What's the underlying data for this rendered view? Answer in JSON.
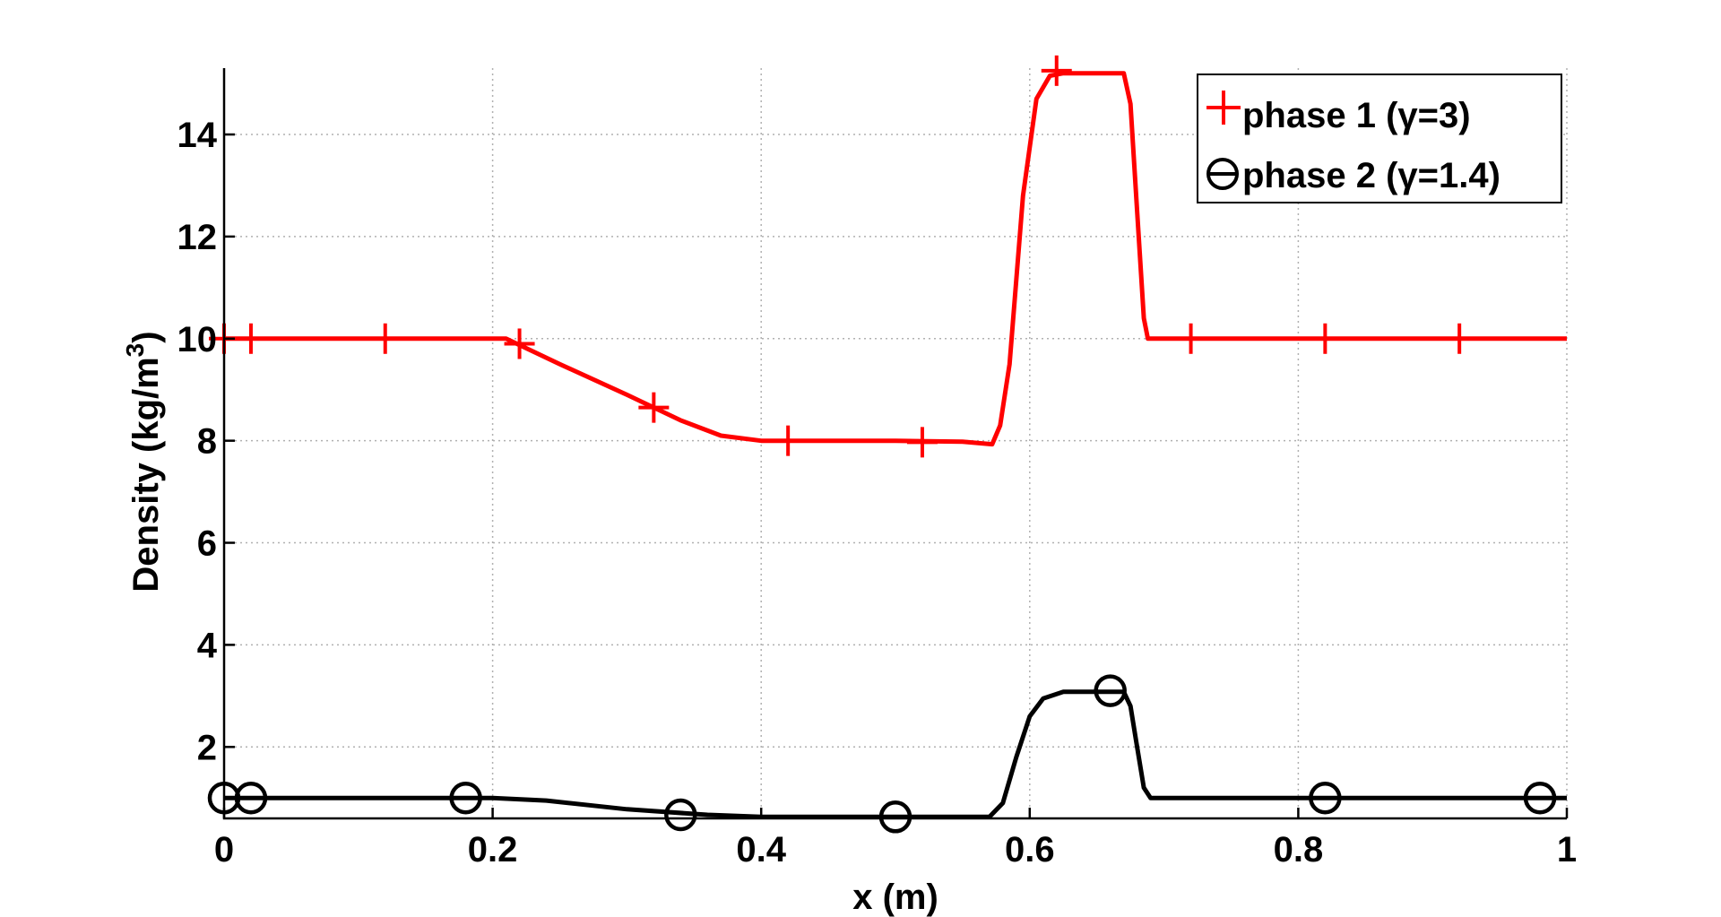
{
  "chart_data": {
    "type": "line",
    "xlabel": "x (m)",
    "ylabel_main": "Density (kg/m",
    "ylabel_sup": "3",
    "ylabel_close": ")",
    "xlim": [
      0,
      1
    ],
    "ylim": [
      0.6,
      15.3
    ],
    "xticks": [
      0,
      0.2,
      0.4,
      0.6,
      0.8,
      1
    ],
    "xtick_labels": [
      "0",
      "0.2",
      "0.4",
      "0.6",
      "0.8",
      "1"
    ],
    "yticks": [
      2,
      4,
      6,
      8,
      10,
      12,
      14
    ],
    "ytick_labels": [
      "2",
      "4",
      "6",
      "8",
      "10",
      "12",
      "14"
    ],
    "grid": true,
    "legend_position": "top-right",
    "colors": {
      "phase1": "#ff0000",
      "phase2": "#000000"
    },
    "series": [
      {
        "name": "phase 1 (γ=3)",
        "marker": "plus",
        "color": "#ff0000",
        "x": [
          0,
          0.21,
          0.25,
          0.3,
          0.34,
          0.37,
          0.4,
          0.45,
          0.5,
          0.55,
          0.572,
          0.578,
          0.585,
          0.595,
          0.605,
          0.615,
          0.625,
          0.67,
          0.675,
          0.68,
          0.685,
          0.688,
          0.7,
          0.8,
          0.9,
          1.0
        ],
        "y": [
          10,
          10,
          9.5,
          8.9,
          8.4,
          8.1,
          8.0,
          8.0,
          8.0,
          7.98,
          7.93,
          8.3,
          9.5,
          12.8,
          14.7,
          15.15,
          15.2,
          15.2,
          14.6,
          12.5,
          10.4,
          10,
          10,
          10,
          10,
          10
        ],
        "marker_x": [
          0,
          0.02,
          0.12,
          0.22,
          0.32,
          0.42,
          0.52,
          0.62,
          0.72,
          0.82,
          0.92
        ],
        "marker_y": [
          10,
          10,
          10,
          9.9,
          8.65,
          8.0,
          7.97,
          15.25,
          10,
          10,
          10
        ]
      },
      {
        "name": "phase 2 (γ=1.4)",
        "marker": "circle",
        "color": "#000000",
        "x": [
          0,
          0.2,
          0.24,
          0.3,
          0.36,
          0.4,
          0.5,
          0.57,
          0.58,
          0.59,
          0.6,
          0.61,
          0.625,
          0.67,
          0.675,
          0.68,
          0.685,
          0.69,
          0.75,
          0.85,
          1.0
        ],
        "y": [
          1,
          1,
          0.95,
          0.78,
          0.67,
          0.63,
          0.63,
          0.63,
          0.9,
          1.8,
          2.6,
          2.95,
          3.08,
          3.08,
          2.8,
          2.0,
          1.2,
          1,
          1,
          1,
          1
        ],
        "marker_x": [
          0,
          0.02,
          0.18,
          0.34,
          0.5,
          0.66,
          0.82,
          0.98
        ],
        "marker_y": [
          1,
          1,
          1,
          0.67,
          0.63,
          3.1,
          1,
          1
        ]
      }
    ]
  }
}
